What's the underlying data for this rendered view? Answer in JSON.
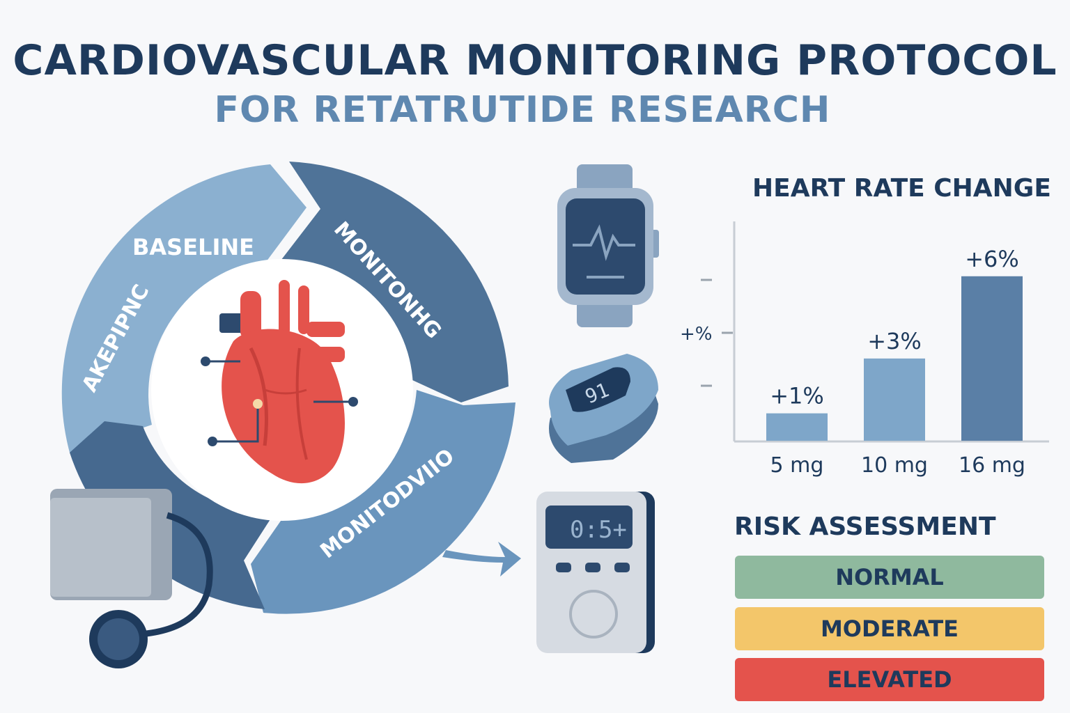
{
  "header": {
    "title": "CARDIOVASCULAR MONITORING PROTOCOL",
    "subtitle": "FOR RETATRUTIDE RESEARCH"
  },
  "cycle": {
    "segments": [
      {
        "label": "BASELINE"
      },
      {
        "label": "AKEPIPNC"
      },
      {
        "label": "MONITONHG"
      },
      {
        "label": "MONITODVIIO"
      }
    ]
  },
  "devices": {
    "oximeter_display": "91",
    "monitor_display": "0:5+"
  },
  "chart": {
    "title": "HEART RATE CHANGE",
    "y_tick_label": "+%"
  },
  "chart_data": {
    "type": "bar",
    "title": "HEART RATE CHANGE",
    "categories": [
      "5 mg",
      "10 mg",
      "16 mg"
    ],
    "values": [
      1,
      3,
      6
    ],
    "data_labels": [
      "+1%",
      "+3%",
      "+6%"
    ],
    "colors": [
      "#7ea6c9",
      "#7ea6c9",
      "#5a7fa6"
    ],
    "ylim": [
      0,
      8
    ],
    "grid": false
  },
  "risk": {
    "title": "RISK ASSESSMENT",
    "levels": [
      {
        "label": "NORMAL",
        "color": "#8fb99e"
      },
      {
        "label": "MODERATE",
        "color": "#f3c66a"
      },
      {
        "label": "ELEVATED",
        "color": "#e4534c"
      }
    ]
  },
  "colors": {
    "navy": "#1e3a5c",
    "steel": "#5f88b0",
    "light_blue": "#8bb0d0",
    "heart_red": "#e4534c"
  }
}
